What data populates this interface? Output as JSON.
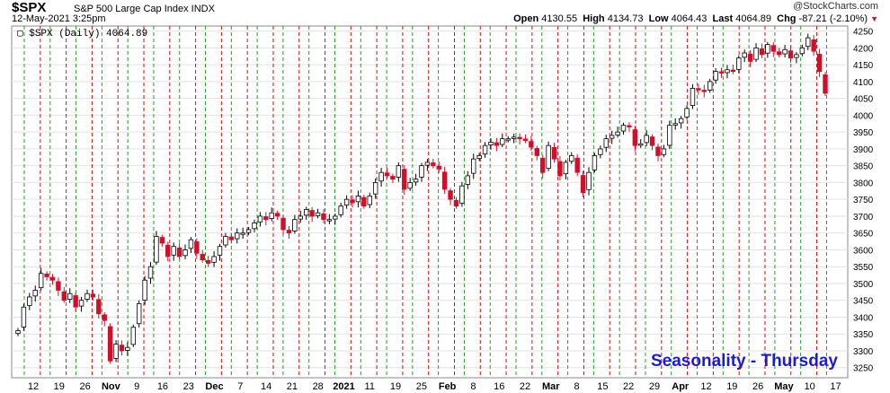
{
  "header": {
    "symbol": "$SPX",
    "name": "S&P 500 Large Cap Index  INDX",
    "date": "12-May-2021 3:25pm",
    "brand": "@StockCharts.com",
    "open_label": "Open",
    "open": "4130.55",
    "high_label": "High",
    "high": "4134.73",
    "low_label": "Low",
    "low": "4064.43",
    "last_label": "Last",
    "last": "4064.89",
    "chg_label": "Chg",
    "chg": "-87.21 (-2.10%)",
    "chg_arrow": "▼"
  },
  "chart_data": {
    "type": "candlestick",
    "legend": "$SPX (Daily) 4064.89",
    "annotation": "Seasonality - Thursday",
    "colors": {
      "up": "#ffffff",
      "down": "#d0102b",
      "outline": "#000000",
      "thursday_line": "#d01010",
      "other_line": "#2a9a2a",
      "annotation": "#1a1adc"
    },
    "y_ticks": [
      3250,
      3300,
      3350,
      3400,
      3450,
      3500,
      3550,
      3600,
      3650,
      3700,
      3750,
      3800,
      3850,
      3900,
      3950,
      4000,
      4050,
      4100,
      4150,
      4200,
      4250
    ],
    "ylim": [
      3220,
      4265
    ],
    "x_tick_labels": [
      "12",
      "19",
      "26",
      "Nov",
      "9",
      "16",
      "23",
      "Dec",
      "7",
      "14",
      "21",
      "28",
      "2021",
      "11",
      "19",
      "25",
      "Feb",
      "8",
      "16",
      "22",
      "Mar",
      "8",
      "15",
      "22",
      "29",
      "Apr",
      "12",
      "19",
      "26",
      "May",
      "10",
      "17"
    ],
    "bold_x_labels": [
      "Nov",
      "Dec",
      "2021",
      "Feb",
      "Mar",
      "Apr",
      "May"
    ],
    "grid": true,
    "close_series": [
      3360,
      3430,
      3460,
      3480,
      3530,
      3520,
      3510,
      3480,
      3450,
      3470,
      3430,
      3450,
      3470,
      3460,
      3410,
      3390,
      3270,
      3320,
      3300,
      3310,
      3370,
      3440,
      3510,
      3550,
      3640,
      3620,
      3580,
      3610,
      3580,
      3600,
      3630,
      3590,
      3570,
      3560,
      3580,
      3610,
      3640,
      3630,
      3650,
      3650,
      3660,
      3680,
      3700,
      3690,
      3710,
      3700,
      3660,
      3650,
      3690,
      3700,
      3720,
      3700,
      3710,
      3690,
      3690,
      3700,
      3730,
      3750,
      3740,
      3760,
      3730,
      3760,
      3800,
      3830,
      3820,
      3810,
      3850,
      3780,
      3800,
      3810,
      3850,
      3860,
      3850,
      3840,
      3780,
      3750,
      3730,
      3790,
      3820,
      3870,
      3880,
      3910,
      3920,
      3910,
      3930,
      3930,
      3935,
      3930,
      3925,
      3905,
      3880,
      3830,
      3910,
      3870,
      3820,
      3860,
      3880,
      3830,
      3770,
      3830,
      3880,
      3900,
      3930,
      3940,
      3950,
      3970,
      3965,
      3910,
      3915,
      3940,
      3910,
      3880,
      3900,
      3970,
      3975,
      3990,
      4020,
      4080,
      4075,
      4070,
      4100,
      4130,
      4125,
      4135,
      4130,
      4170,
      4185,
      4160,
      4200,
      4180,
      4210,
      4190,
      4180,
      4195,
      4170,
      4180,
      4200,
      4230,
      4190,
      4130,
      4065
    ]
  }
}
